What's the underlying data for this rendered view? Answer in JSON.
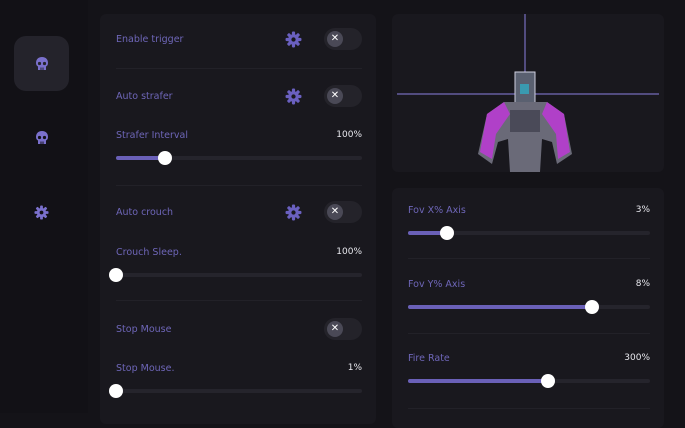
{
  "colors": {
    "accent": "#6a60b8",
    "label": "#6e66b8",
    "background": "#141318",
    "panel": "#19181e"
  },
  "sidebar": {
    "items": [
      {
        "icon": "skull-icon",
        "active": true
      },
      {
        "icon": "skull-icon",
        "active": false
      },
      {
        "icon": "gear-icon",
        "active": false
      }
    ]
  },
  "left_panel": {
    "enable_trigger": {
      "label": "Enable trigger",
      "enabled": false
    },
    "auto_strafer": {
      "label": "Auto strafer",
      "enabled": false
    },
    "strafer_interval": {
      "label": "Strafer Interval",
      "value": "100%",
      "fill": 0.2
    },
    "auto_crouch": {
      "label": "Auto crouch",
      "enabled": false
    },
    "crouch_sleep": {
      "label": "Crouch Sleep.",
      "value": "100%",
      "fill": 0
    },
    "stop_mouse": {
      "label": "Stop Mouse",
      "enabled": false
    },
    "stop_mouse_slider": {
      "label": "Stop Mouse.",
      "value": "1%",
      "fill": 0
    }
  },
  "right_panel": {
    "fov_x": {
      "label": "Fov X% Axis",
      "value": "3%",
      "fill": 0.16
    },
    "fov_y": {
      "label": "Fov Y% Axis",
      "value": "8%",
      "fill": 0.76
    },
    "fire_rate": {
      "label": "Fire Rate",
      "value": "300%",
      "fill": 0.58
    }
  },
  "toggle_off_glyph": "✕"
}
